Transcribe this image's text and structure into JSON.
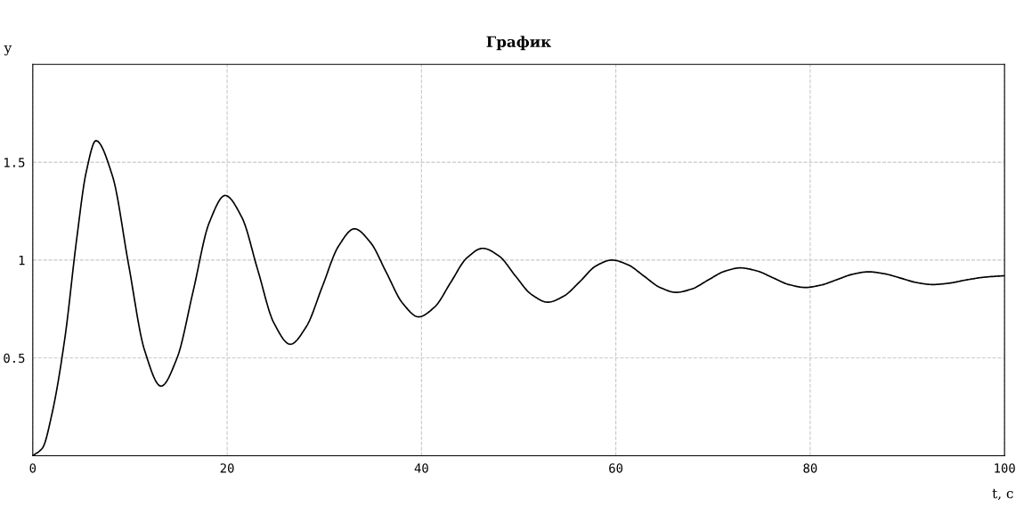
{
  "chart_data": {
    "type": "line",
    "title": "График",
    "xlabel": "t, c",
    "ylabel": "y",
    "x": [
      0,
      1,
      2,
      3.3,
      4.5,
      5.5,
      6.5,
      8.2,
      9.85,
      11.5,
      13.2,
      14.85,
      16.5,
      18.15,
      19.8,
      21.5,
      23.15,
      24.8,
      26.5,
      28.15,
      29.8,
      31.45,
      33.1,
      34.75,
      36.4,
      38.05,
      39.7,
      41.35,
      43,
      44.65,
      46.3,
      48,
      49.65,
      51.3,
      53,
      54.65,
      56.3,
      57.95,
      59.6,
      61.25,
      62.9,
      64.55,
      66.2,
      67.85,
      69.5,
      71.15,
      72.8,
      74.5,
      76.15,
      77.8,
      79.5,
      81.1,
      82.75,
      84.4,
      86,
      87.65,
      89.3,
      90.95,
      92.6,
      94.3,
      96,
      98,
      100
    ],
    "series": [
      {
        "color": "#000000",
        "values": [
          0,
          0.04,
          0.22,
          0.6,
          1.1,
          1.45,
          1.61,
          1.43,
          0.98,
          0.54,
          0.356,
          0.5,
          0.84,
          1.19,
          1.33,
          1.22,
          0.95,
          0.68,
          0.57,
          0.66,
          0.865,
          1.07,
          1.16,
          1.09,
          0.935,
          0.78,
          0.71,
          0.76,
          0.885,
          1.01,
          1.06,
          1.02,
          0.92,
          0.825,
          0.785,
          0.816,
          0.89,
          0.97,
          1.0,
          0.976,
          0.918,
          0.86,
          0.835,
          0.853,
          0.898,
          0.942,
          0.96,
          0.945,
          0.91,
          0.875,
          0.86,
          0.872,
          0.9,
          0.928,
          0.94,
          0.93,
          0.908,
          0.885,
          0.875,
          0.882,
          0.898,
          0.913,
          0.92
        ]
      }
    ],
    "xlim": [
      0,
      100
    ],
    "ylim": [
      0,
      2
    ],
    "xticks": [
      0,
      20,
      40,
      60,
      80,
      100
    ],
    "yticks": [
      0.5,
      1,
      1.5
    ],
    "grid": true,
    "line_style": "solid",
    "marker": "none"
  }
}
